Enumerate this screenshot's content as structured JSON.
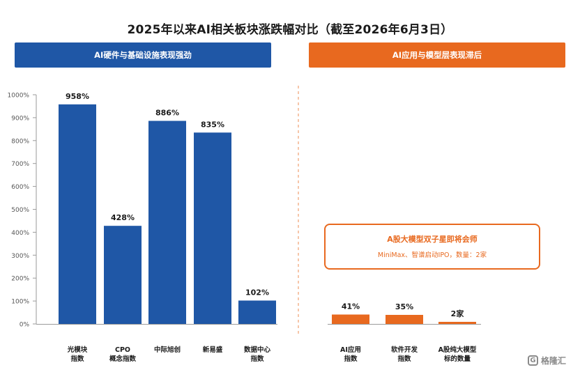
{
  "title": "2025年以来AI相关板块涨跌幅对比（截至2026年6月3日）",
  "banners": {
    "left": "AI硬件与基础设施表现强劲",
    "right": "AI应用与模型层表现滞后"
  },
  "callout": {
    "title": "A股大模型双子星即将会师",
    "subtitle": "MiniMax、智谱启动IPO，数量：2家"
  },
  "logo": {
    "text": "格隆汇"
  },
  "colors": {
    "blue": "#1f57a6",
    "orange": "#e8691f",
    "axis": "#9a9a9a",
    "divider": "#f0a070"
  },
  "chart_data": {
    "type": "bar",
    "ylim": [
      0,
      1000
    ],
    "yticks": [
      "0%",
      "100%",
      "200%",
      "300%",
      "400%",
      "500%",
      "600%",
      "700%",
      "800%",
      "900%",
      "1000%"
    ],
    "groups": [
      {
        "name": "AI硬件与基础设施表现强劲",
        "color": "#1f57a6",
        "categories": [
          [
            "光模块",
            "指数"
          ],
          [
            "CPO",
            "概念指数"
          ],
          [
            "中际旭创"
          ],
          [
            "新易盛"
          ],
          [
            "数据中心",
            "指数"
          ]
        ],
        "values": [
          958,
          428,
          886,
          835,
          102
        ],
        "labels": [
          "958%",
          "428%",
          "886%",
          "835%",
          "102%"
        ]
      },
      {
        "name": "AI应用与模型层表现滞后",
        "color": "#e8691f",
        "categories": [
          [
            "AI应用",
            "指数"
          ],
          [
            "软件开发",
            "指数"
          ],
          [
            "A股纯大模型",
            "标的数量"
          ]
        ],
        "values": [
          41,
          35,
          2
        ],
        "labels": [
          "41%",
          "35%",
          "2家"
        ]
      }
    ]
  }
}
